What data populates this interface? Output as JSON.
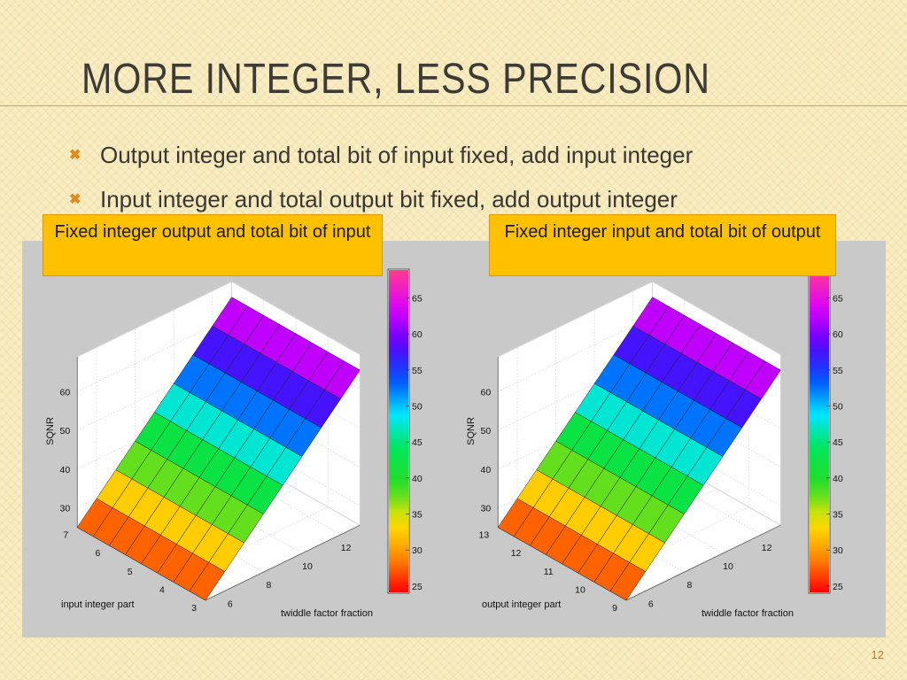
{
  "slide": {
    "title": "More Integer, Less Precision",
    "bullets": [
      "Output integer and total bit of input fixed, add input integer",
      "Input integer and total output bit fixed, add output integer"
    ],
    "bullet_icon": "x-bullet-icon",
    "callouts": [
      "Fixed integer output  and total bit of input",
      "Fixed integer input and total bit of output"
    ],
    "page_number": "12"
  },
  "colors": {
    "accent": "#e08a1e",
    "callout_fill": "#ffc000",
    "plot_background": "#c9c9c9",
    "axes_background": "#ffffff"
  },
  "chart_data": [
    {
      "type": "surface",
      "title": "",
      "zlabel": "SQNR",
      "xlabel": "twiddle factor fraction",
      "ylabel": "input integer part",
      "x_ticks": [
        "6",
        "8",
        "10",
        "12"
      ],
      "y_ticks": [
        "3",
        "4",
        "5",
        "6",
        "7"
      ],
      "z_ticks": [
        "30",
        "40",
        "50",
        "60"
      ],
      "x_range": [
        5,
        13
      ],
      "y_range": [
        3,
        7
      ],
      "z_range": [
        25,
        69
      ],
      "x": [
        5,
        6,
        7,
        8,
        9,
        10,
        11,
        12,
        13
      ],
      "y": [
        3,
        3.5,
        4,
        4.5,
        5,
        5.5,
        6,
        6.5,
        7
      ],
      "sqnr_by_x": [
        25,
        30,
        35,
        40,
        45,
        50,
        55,
        60,
        65
      ],
      "colormap": "jet",
      "colorbar_ticks": [
        "25",
        "30",
        "35",
        "40",
        "45",
        "50",
        "55",
        "60",
        "65"
      ],
      "colorbar_range": [
        24,
        69
      ],
      "grid": true
    },
    {
      "type": "surface",
      "title": "",
      "zlabel": "SQNR",
      "xlabel": "twiddle factor fraction",
      "ylabel": "output integer part",
      "x_ticks": [
        "6",
        "8",
        "10",
        "12"
      ],
      "y_ticks": [
        "9",
        "10",
        "11",
        "12",
        "13"
      ],
      "z_ticks": [
        "30",
        "40",
        "50",
        "60"
      ],
      "x_range": [
        5,
        13
      ],
      "y_range": [
        9,
        13
      ],
      "z_range": [
        25,
        69
      ],
      "x": [
        5,
        6,
        7,
        8,
        9,
        10,
        11,
        12,
        13
      ],
      "y": [
        9,
        9.5,
        10,
        10.5,
        11,
        11.5,
        12,
        12.5,
        13
      ],
      "sqnr_by_x": [
        25,
        30,
        35,
        40,
        45,
        50,
        55,
        60,
        65
      ],
      "colormap": "jet",
      "colorbar_ticks": [
        "25",
        "30",
        "35",
        "40",
        "45",
        "50",
        "55",
        "60",
        "65"
      ],
      "colorbar_range": [
        24,
        69
      ],
      "grid": true
    }
  ]
}
